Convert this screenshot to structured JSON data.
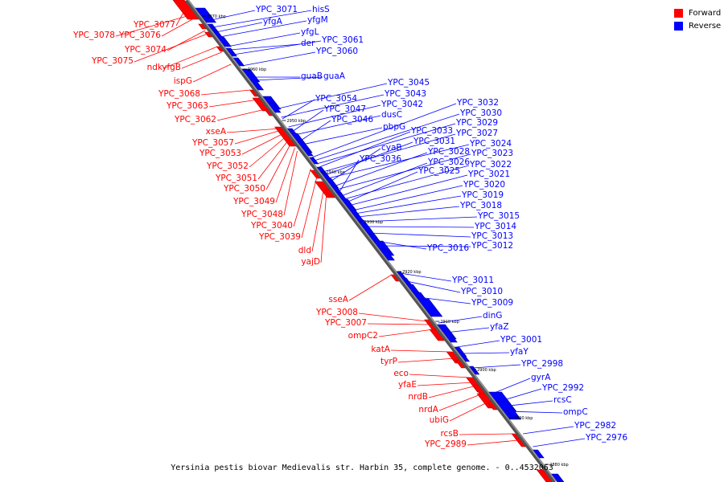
{
  "title": "Yersinia pestis biovar Medievalis str. Harbin 35, complete genome. - 0..4532063",
  "legend": [
    {
      "label": "Forward",
      "color": "#ff0000"
    },
    {
      "label": "Reverse",
      "color": "#0000ff"
    }
  ],
  "colors": {
    "forward": "#ff0000",
    "reverse": "#0000ff",
    "axis": "#555555"
  },
  "ticks": [
    "2970 kbp",
    "2960 kbp",
    "2950 kbp",
    "2940 kbp",
    "2930 kbp",
    "2920 kbp",
    "2910 kbp",
    "2900 kbp",
    "2890 kbp",
    "2880 kbp"
  ],
  "forward_labels": [
    "YPC_3077",
    "YPC_3078",
    "YPC_3076",
    "YPC_3074",
    "YPC_3075",
    "ndk",
    "yfgB",
    "ispG",
    "YPC_3068",
    "YPC_3063",
    "YPC_3062",
    "xseA",
    "YPC_3057",
    "YPC_3053",
    "YPC_3052",
    "YPC_3051",
    "YPC_3050",
    "YPC_3049",
    "YPC_3048",
    "YPC_3040",
    "YPC_3039",
    "dld",
    "yajD",
    "sseA",
    "YPC_3008",
    "YPC_3007",
    "ompC2",
    "katA",
    "tyrP",
    "eco",
    "yfaE",
    "nrdB",
    "nrdA",
    "ubiG",
    "rcsB",
    "YPC_2989"
  ],
  "reverse_labels": [
    "YPC_3071",
    "hisS",
    "yfgA",
    "yfgM",
    "yfgL",
    "der",
    "YPC_3061",
    "YPC_3060",
    "guaB",
    "guaA",
    "YPC_3045",
    "YPC_3043",
    "YPC_3054",
    "YPC_3042",
    "YPC_3047",
    "dusC",
    "YPC_3046",
    "pbpG",
    "YPC_3032",
    "YPC_3030",
    "YPC_3029",
    "YPC_3033",
    "YPC_3027",
    "YPC_3031",
    "YPC_3024",
    "cyaB",
    "YPC_3028",
    "YPC_3023",
    "YPC_3036",
    "YPC_3026",
    "YPC_3022",
    "YPC_3025",
    "YPC_3021",
    "YPC_3020",
    "YPC_3019",
    "YPC_3018",
    "YPC_3015",
    "YPC_3014",
    "YPC_3013",
    "YPC_3016",
    "YPC_3012",
    "YPC_3011",
    "YPC_3010",
    "YPC_3009",
    "dinG",
    "yfaZ",
    "YPC_3001",
    "yfaY",
    "YPC_2998",
    "gyrA",
    "YPC_2992",
    "rcsC",
    "ompC",
    "YPC_2982",
    "YPC_2976"
  ]
}
